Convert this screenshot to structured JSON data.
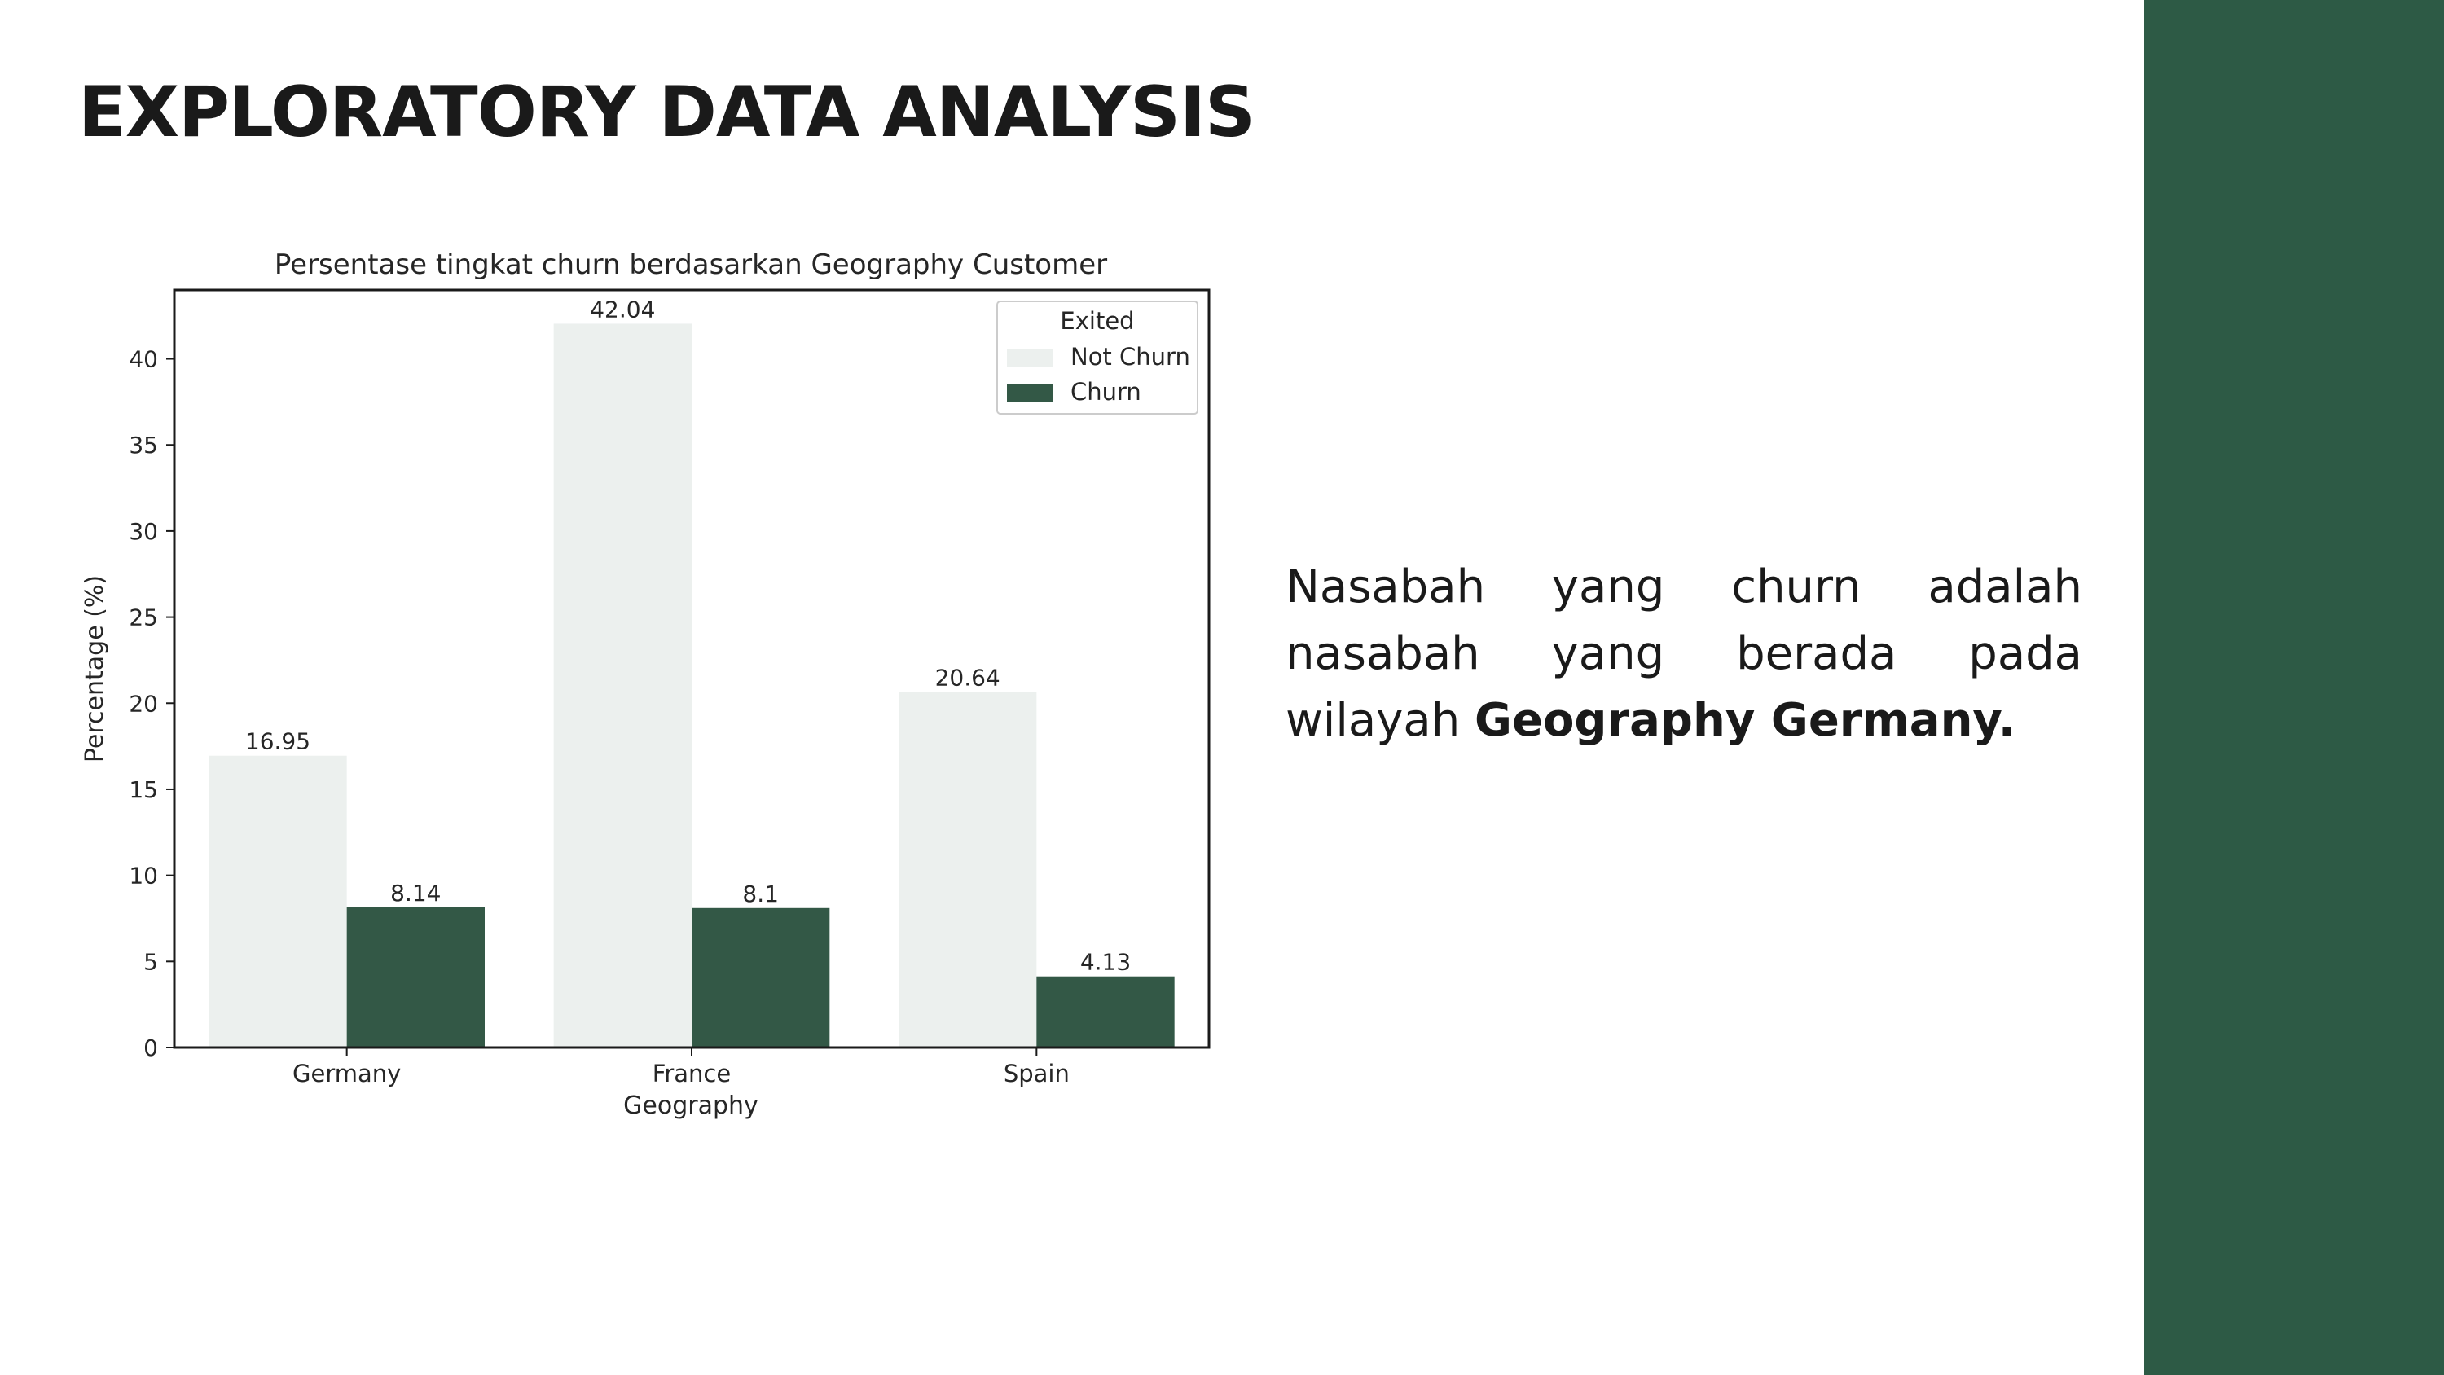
{
  "slide": {
    "title": "EXPLORATORY DATA ANALYSIS",
    "description_text": "Nasabah yang churn adalah nasabah yang berada pada wilayah",
    "description_emphasis": "Geography  Germany.",
    "colors": {
      "accent_band": "#2d5a45",
      "title_text": "#1a1a1a"
    }
  },
  "chart_data": {
    "type": "bar",
    "title": "Persentase tingkat churn berdasarkan Geography Customer",
    "xlabel": "Geography",
    "ylabel": "Percentage (%)",
    "categories": [
      "Germany",
      "France",
      "Spain"
    ],
    "series": [
      {
        "name": "Not Churn",
        "values": [
          16.95,
          42.04,
          20.64
        ],
        "color": "#ecf0ee"
      },
      {
        "name": "Churn",
        "values": [
          8.14,
          8.1,
          4.13
        ],
        "color": "#335846"
      }
    ],
    "data_labels": [
      [
        "16.95",
        "42.04",
        "20.64"
      ],
      [
        "8.14",
        "8.1",
        "4.13"
      ]
    ],
    "ylim": [
      0,
      44
    ],
    "yticks": [
      0,
      5,
      10,
      15,
      20,
      25,
      30,
      35,
      40
    ],
    "legend": {
      "title": "Exited",
      "placement": "top-right"
    },
    "grid": false
  }
}
